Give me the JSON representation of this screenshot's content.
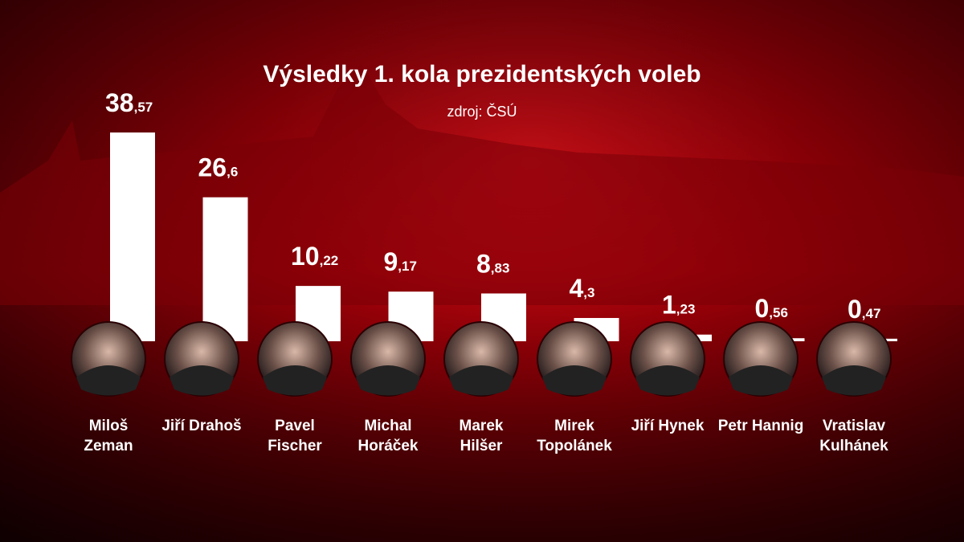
{
  "chart_data": {
    "type": "bar",
    "title": "Výsledky 1. kola prezidentských voleb",
    "subtitle": "zdroj: ČSÚ",
    "categories": [
      "Miloš Zeman",
      "Jiří Drahoš",
      "Pavel Fischer",
      "Michal Horáček",
      "Marek Hilšer",
      "Mirek Topolánek",
      "Jiří Hynek",
      "Petr Hannig",
      "Vratislav Kulhánek"
    ],
    "values": [
      38.57,
      26.6,
      10.22,
      9.17,
      8.83,
      4.3,
      1.23,
      0.56,
      0.47
    ],
    "value_labels": [
      "38,57",
      "26,6",
      "10,22",
      "9,17",
      "8,83",
      "4,3",
      "1,23",
      "0,56",
      "0,47"
    ],
    "color": "#ffffff"
  }
}
